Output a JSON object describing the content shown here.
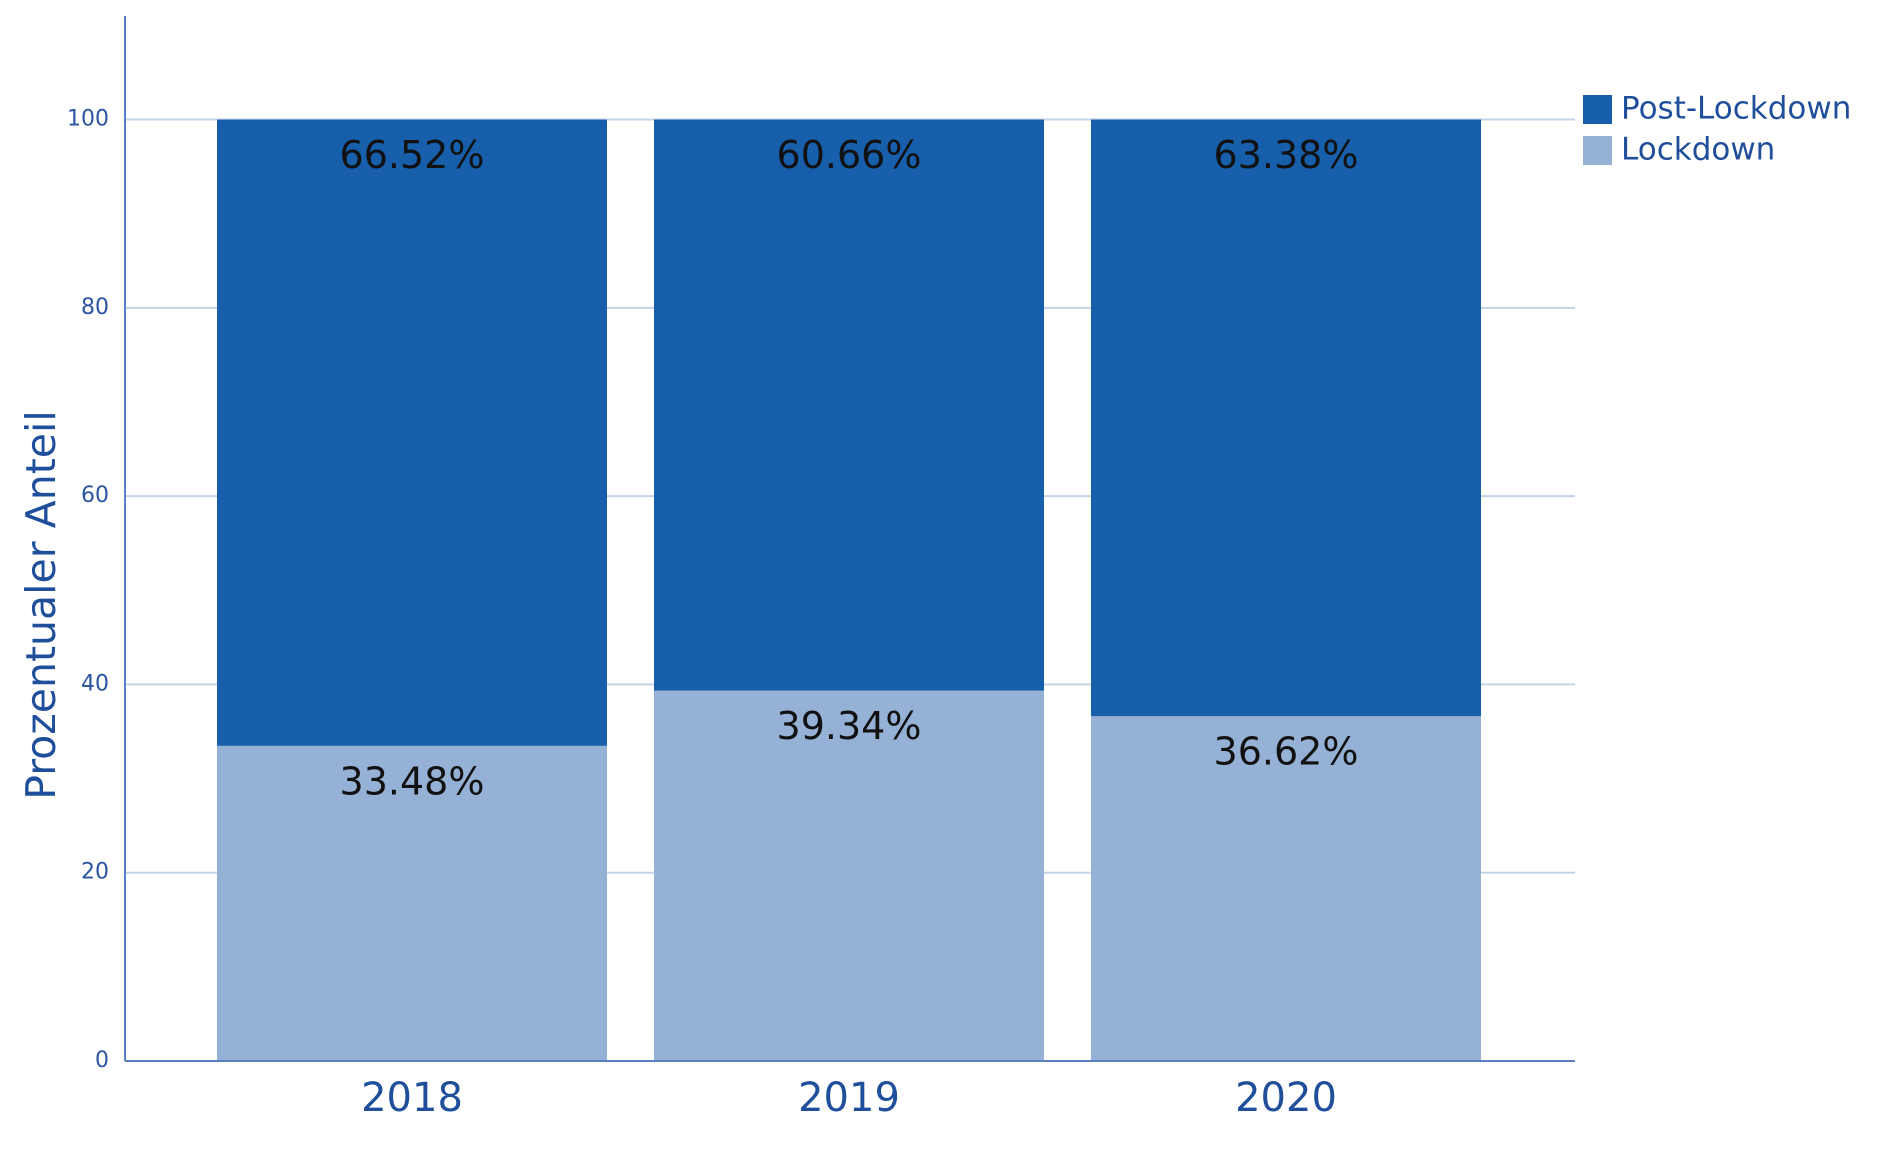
{
  "chart_data": {
    "type": "stacked_bar",
    "y_label": "Prozentualer Anteil",
    "categories": [
      "2018",
      "2019",
      "2020"
    ],
    "series": [
      {
        "name": "Lockdown",
        "color": "#96b1d6",
        "values": [
          33.48,
          39.34,
          36.62
        ],
        "value_labels": [
          "33.48%",
          "39.34%",
          "36.62%"
        ]
      },
      {
        "name": "Post-Lockdown",
        "color": "#175faa",
        "values": [
          66.52,
          60.66,
          63.38
        ],
        "value_labels": [
          "66.52%",
          "60.66%",
          "63.38%"
        ]
      }
    ],
    "ylim": [
      0,
      111
    ],
    "yticks": [
      0,
      20,
      40,
      60,
      80,
      100
    ],
    "grid": true,
    "legend": "top-right"
  }
}
